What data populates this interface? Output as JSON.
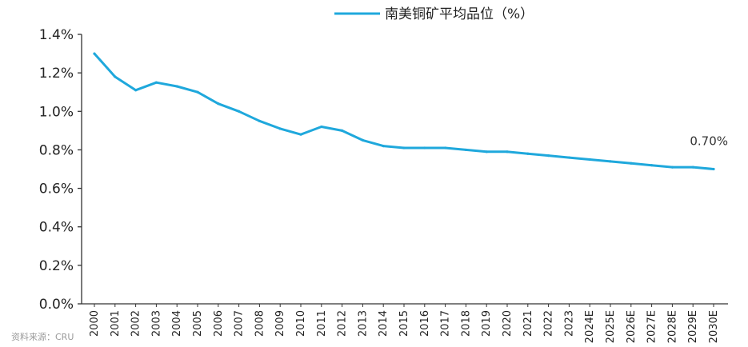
{
  "chart_data": {
    "type": "line",
    "title": "",
    "xlabel": "",
    "ylabel": "",
    "legend_position": "top-center",
    "grid": false,
    "x": [
      "2000",
      "2001",
      "2002",
      "2003",
      "2004",
      "2005",
      "2006",
      "2007",
      "2008",
      "2009",
      "2010",
      "2011",
      "2012",
      "2013",
      "2014",
      "2015",
      "2016",
      "2017",
      "2018",
      "2019",
      "2020",
      "2021",
      "2022",
      "2023",
      "2024E",
      "2025E",
      "2026E",
      "2027E",
      "2028E",
      "2029E",
      "2030E"
    ],
    "series": [
      {
        "name": "南美铜矿平均品位（%）",
        "color": "#1fa8dc",
        "values": [
          1.3,
          1.18,
          1.11,
          1.15,
          1.13,
          1.1,
          1.04,
          1.0,
          0.95,
          0.91,
          0.88,
          0.92,
          0.9,
          0.85,
          0.82,
          0.81,
          0.81,
          0.81,
          0.8,
          0.79,
          0.79,
          0.78,
          0.77,
          0.76,
          0.75,
          0.74,
          0.73,
          0.72,
          0.71,
          0.71,
          0.7
        ]
      }
    ],
    "ylim": [
      0,
      1.4
    ],
    "yticks": [
      0,
      0.2,
      0.4,
      0.6,
      0.8,
      1.0,
      1.2,
      1.4
    ],
    "ytick_labels": [
      "0.0%",
      "0.2%",
      "0.4%",
      "0.6%",
      "0.8%",
      "1.0%",
      "1.2%",
      "1.4%"
    ],
    "annotations": [
      {
        "x": "2030E",
        "text": "0.70%"
      }
    ],
    "source": "资料来源：CRU"
  }
}
